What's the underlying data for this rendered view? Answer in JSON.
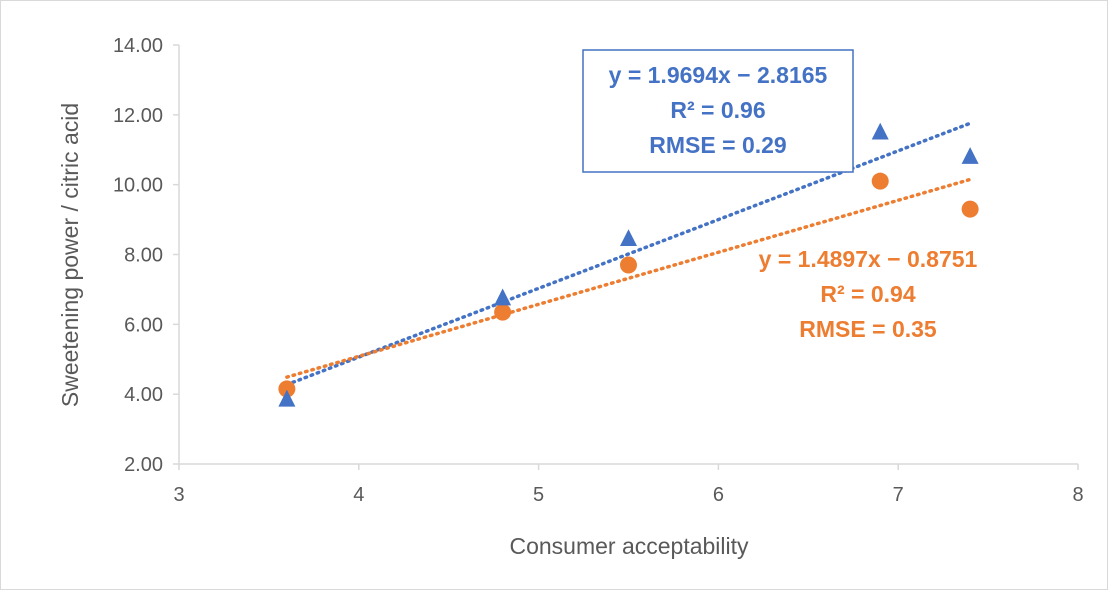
{
  "chart_data": {
    "type": "scatter",
    "title": "",
    "xlabel": "Consumer acceptability",
    "ylabel": "Sweetening power / citric acid",
    "xlim": [
      3,
      8
    ],
    "ylim": [
      2,
      14
    ],
    "x_ticks": [
      3,
      4,
      5,
      6,
      7,
      8
    ],
    "y_ticks": [
      2,
      4,
      6,
      8,
      10,
      12,
      14
    ],
    "x_tick_labels": [
      "3",
      "4",
      "5",
      "6",
      "7",
      "8"
    ],
    "y_tick_labels": [
      "2.00",
      "4.00",
      "6.00",
      "8.00",
      "10.00",
      "12.00",
      "14.00"
    ],
    "grid": false,
    "legend": "none",
    "series": [
      {
        "marker": "triangle",
        "color": "#4472C4",
        "x": [
          3.6,
          4.8,
          5.5,
          6.9,
          7.4
        ],
        "y": [
          3.85,
          6.75,
          8.45,
          11.5,
          10.8
        ],
        "trendline": {
          "slope": 1.9694,
          "intercept": -2.8165,
          "style": "dotted",
          "equation": "y = 1.9694x − 2.8165",
          "r2": "R² = 0.96",
          "rmse": "RMSE = 0.29",
          "boxed": true
        }
      },
      {
        "marker": "circle",
        "color": "#ED7D31",
        "x": [
          3.6,
          4.8,
          5.5,
          6.9,
          7.4
        ],
        "y": [
          4.15,
          6.35,
          7.7,
          10.1,
          9.3
        ],
        "trendline": {
          "slope": 1.4897,
          "intercept": -0.8751,
          "style": "dotted",
          "equation": "y = 1.4897x − 0.8751",
          "r2": "R² = 0.94",
          "rmse": "RMSE = 0.35",
          "boxed": false
        }
      }
    ]
  }
}
